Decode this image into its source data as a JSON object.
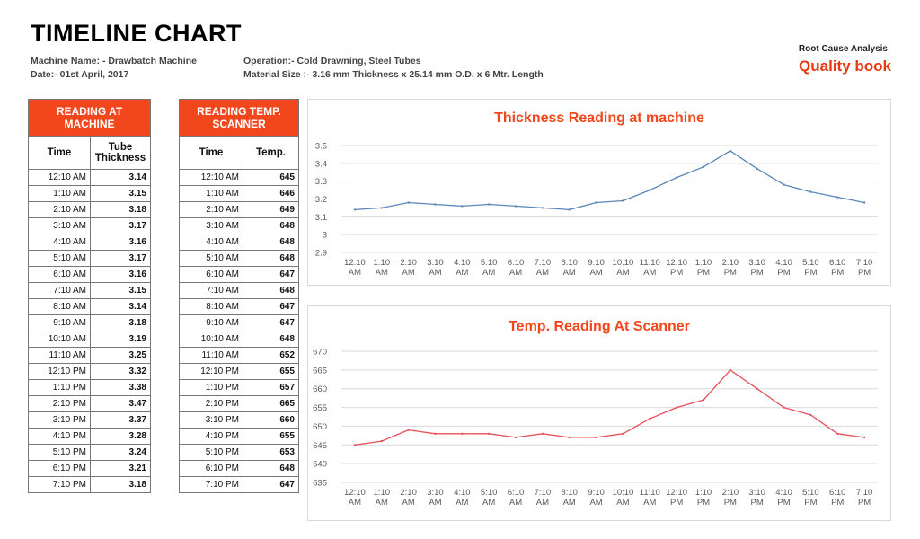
{
  "header": {
    "title": "TIMELINE CHART",
    "machine_name": "Machine Name: - Drawbatch Machine",
    "date": "Date:- 01st April, 2017",
    "operation": "Operation:-  Cold Drawning, Steel Tubes",
    "material_size": "Material Size :-  3.16 mm Thickness x 25.14 mm O.D. x 6 Mtr. Length"
  },
  "brand": {
    "top": "Root Cause Analysis",
    "name": "uality book",
    "letter": "Q",
    "color": "#e63812"
  },
  "table1": {
    "header": "READING AT MACHINE",
    "col1": "Time",
    "col2": "Tube Thickness",
    "rows": [
      [
        "12:10 AM",
        "3.14"
      ],
      [
        "1:10 AM",
        "3.15"
      ],
      [
        "2:10 AM",
        "3.18"
      ],
      [
        "3:10 AM",
        "3.17"
      ],
      [
        "4:10 AM",
        "3.16"
      ],
      [
        "5:10 AM",
        "3.17"
      ],
      [
        "6:10 AM",
        "3.16"
      ],
      [
        "7:10 AM",
        "3.15"
      ],
      [
        "8:10 AM",
        "3.14"
      ],
      [
        "9:10 AM",
        "3.18"
      ],
      [
        "10:10 AM",
        "3.19"
      ],
      [
        "11:10 AM",
        "3.25"
      ],
      [
        "12:10 PM",
        "3.32"
      ],
      [
        "1:10 PM",
        "3.38"
      ],
      [
        "2:10 PM",
        "3.47"
      ],
      [
        "3:10 PM",
        "3.37"
      ],
      [
        "4:10 PM",
        "3.28"
      ],
      [
        "5:10 PM",
        "3.24"
      ],
      [
        "6:10 PM",
        "3.21"
      ],
      [
        "7:10 PM",
        "3.18"
      ]
    ]
  },
  "table2": {
    "header": "READING TEMP. SCANNER",
    "col1": "Time",
    "col2": "Temp.",
    "rows": [
      [
        "12:10 AM",
        "645"
      ],
      [
        "1:10 AM",
        "646"
      ],
      [
        "2:10 AM",
        "649"
      ],
      [
        "3:10 AM",
        "648"
      ],
      [
        "4:10 AM",
        "648"
      ],
      [
        "5:10 AM",
        "648"
      ],
      [
        "6:10 AM",
        "647"
      ],
      [
        "7:10 AM",
        "648"
      ],
      [
        "8:10 AM",
        "647"
      ],
      [
        "9:10 AM",
        "647"
      ],
      [
        "10:10 AM",
        "648"
      ],
      [
        "11:10 AM",
        "652"
      ],
      [
        "12:10 PM",
        "655"
      ],
      [
        "1:10 PM",
        "657"
      ],
      [
        "2:10 PM",
        "665"
      ],
      [
        "3:10 PM",
        "660"
      ],
      [
        "4:10 PM",
        "655"
      ],
      [
        "5:10 PM",
        "653"
      ],
      [
        "6:10 PM",
        "648"
      ],
      [
        "7:10 PM",
        "647"
      ]
    ]
  },
  "chart_data": [
    {
      "type": "line",
      "title": "Thickness Reading at machine",
      "xlabel": "",
      "ylabel": "",
      "categories": [
        "12:10 AM",
        "1:10 AM",
        "2:10 AM",
        "3:10 AM",
        "4:10 AM",
        "5:10 AM",
        "6:10 AM",
        "7:10 AM",
        "8:10 AM",
        "9:10 AM",
        "10:10 AM",
        "11:10 AM",
        "12:10 PM",
        "1:10 PM",
        "2:10 PM",
        "3:10 PM",
        "4:10 PM",
        "5:10 PM",
        "6:10 PM",
        "7:10 PM"
      ],
      "series": [
        {
          "values": [
            3.14,
            3.15,
            3.18,
            3.17,
            3.16,
            3.17,
            3.16,
            3.15,
            3.14,
            3.18,
            3.19,
            3.25,
            3.32,
            3.38,
            3.47,
            3.37,
            3.28,
            3.24,
            3.21,
            3.18
          ]
        }
      ],
      "ylim": [
        2.9,
        3.5
      ],
      "yticks": [
        "3.5",
        "3.4",
        "3.3",
        "3.2",
        "3.1",
        "3",
        "2.9"
      ],
      "line_color": "#5b86b8",
      "grid": true,
      "legend": "none"
    },
    {
      "type": "line",
      "title": "Temp. Reading At Scanner",
      "xlabel": "",
      "ylabel": "",
      "categories": [
        "12:10 AM",
        "1:10 AM",
        "2:10 AM",
        "3:10 AM",
        "4:10 AM",
        "5:10 AM",
        "6:10 AM",
        "7:10 AM",
        "8:10 AM",
        "9:10 AM",
        "10:10 AM",
        "11:10 AM",
        "12:10 PM",
        "1:10 PM",
        "2:10 PM",
        "3:10 PM",
        "4:10 PM",
        "5:10 PM",
        "6:10 PM",
        "7:10 PM"
      ],
      "series": [
        {
          "values": [
            645,
            646,
            649,
            648,
            648,
            648,
            647,
            648,
            647,
            647,
            648,
            652,
            655,
            657,
            665,
            660,
            655,
            653,
            648,
            647
          ]
        }
      ],
      "ylim": [
        635,
        670
      ],
      "yticks": [
        "670",
        "665",
        "660",
        "655",
        "650",
        "645",
        "640",
        "635"
      ],
      "line_color": "#e8505b",
      "grid": true,
      "legend": "none"
    }
  ]
}
